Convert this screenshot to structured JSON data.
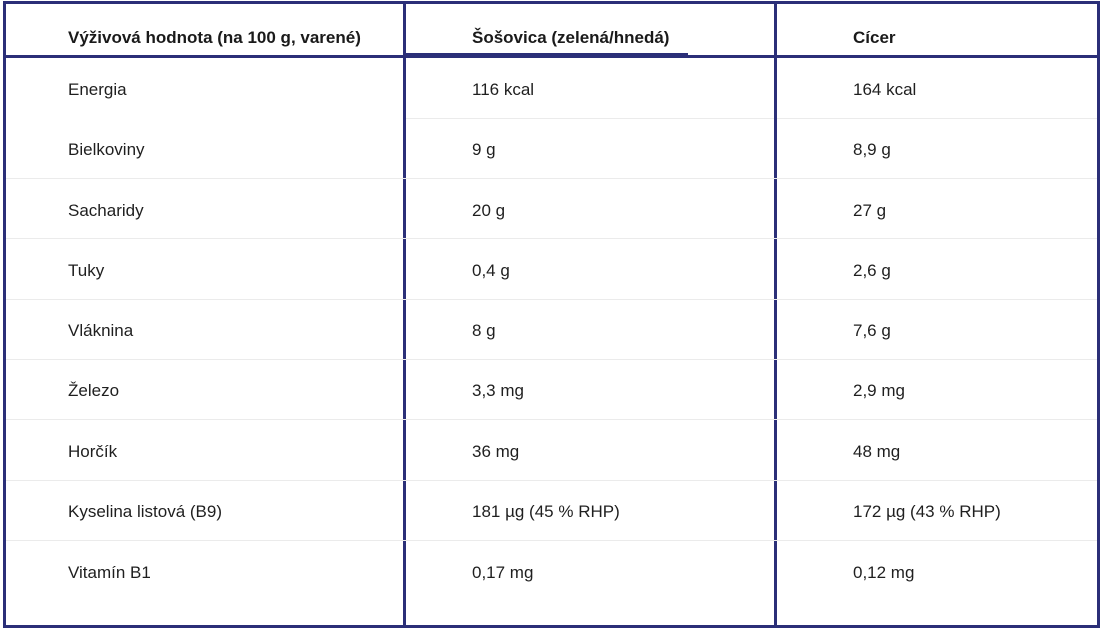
{
  "table": {
    "headers": [
      "Výživová hodnota (na 100 g, varené)",
      "Šošovica (zelená/hnedá)",
      "Cícer"
    ],
    "rows": [
      [
        "Energia",
        "116 kcal",
        "164 kcal"
      ],
      [
        "Bielkoviny",
        "9 g",
        "8,9 g"
      ],
      [
        "Sacharidy",
        "20 g",
        "27 g"
      ],
      [
        "Tuky",
        "0,4 g",
        "2,6 g"
      ],
      [
        "Vláknina",
        "8 g",
        "7,6 g"
      ],
      [
        "Železo",
        "3,3 mg",
        "2,9 mg"
      ],
      [
        "Horčík",
        "36 mg",
        "48 mg"
      ],
      [
        "Kyselina listová (B9)",
        "181 µg (45 % RHP)",
        "172 µg (43 % RHP)"
      ],
      [
        "Vitamín B1",
        "0,17 mg",
        "0,12 mg"
      ]
    ]
  },
  "colors": {
    "border": "#2b2f78",
    "row_separator": "#ebebeb",
    "text": "#1f1f1f"
  }
}
